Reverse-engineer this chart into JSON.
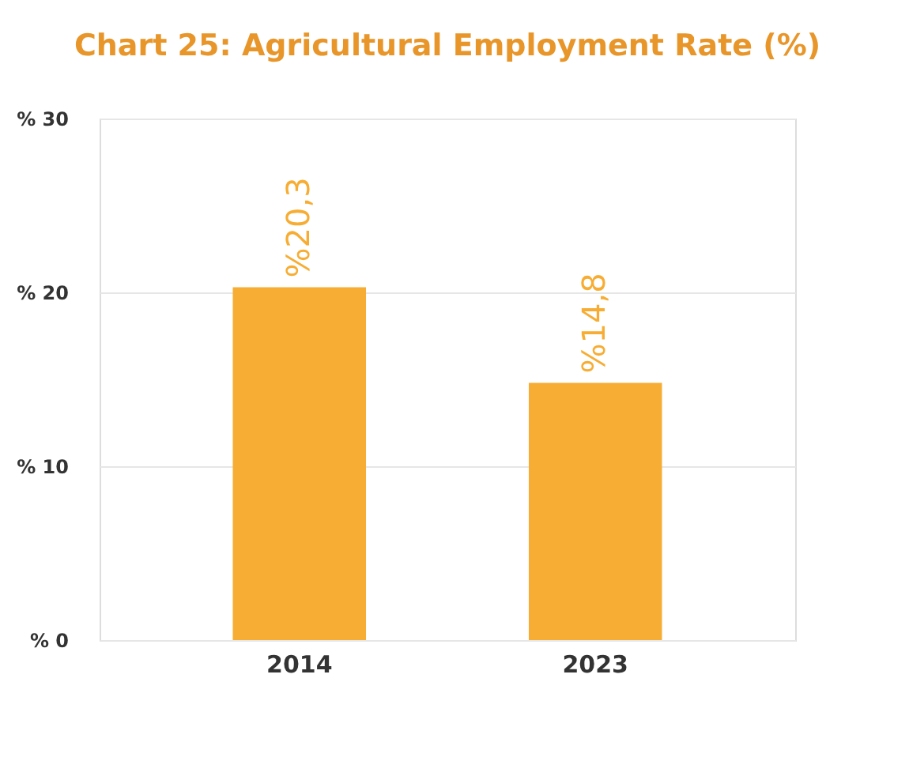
{
  "chart_data": {
    "type": "bar",
    "title": "Chart 25: Agricultural Employment Rate (%)",
    "categories": [
      "2014",
      "2023"
    ],
    "values": [
      20.3,
      14.8
    ],
    "value_labels": [
      "%20,3",
      "%14,8"
    ],
    "color": "#f7ad33",
    "ylim": [
      0,
      30
    ],
    "yticks": [
      {
        "value": 0,
        "label": "% 0"
      },
      {
        "value": 10,
        "label": "% 10"
      },
      {
        "value": 20,
        "label": "% 20"
      },
      {
        "value": 30,
        "label": "% 30"
      }
    ],
    "grid": "y"
  }
}
